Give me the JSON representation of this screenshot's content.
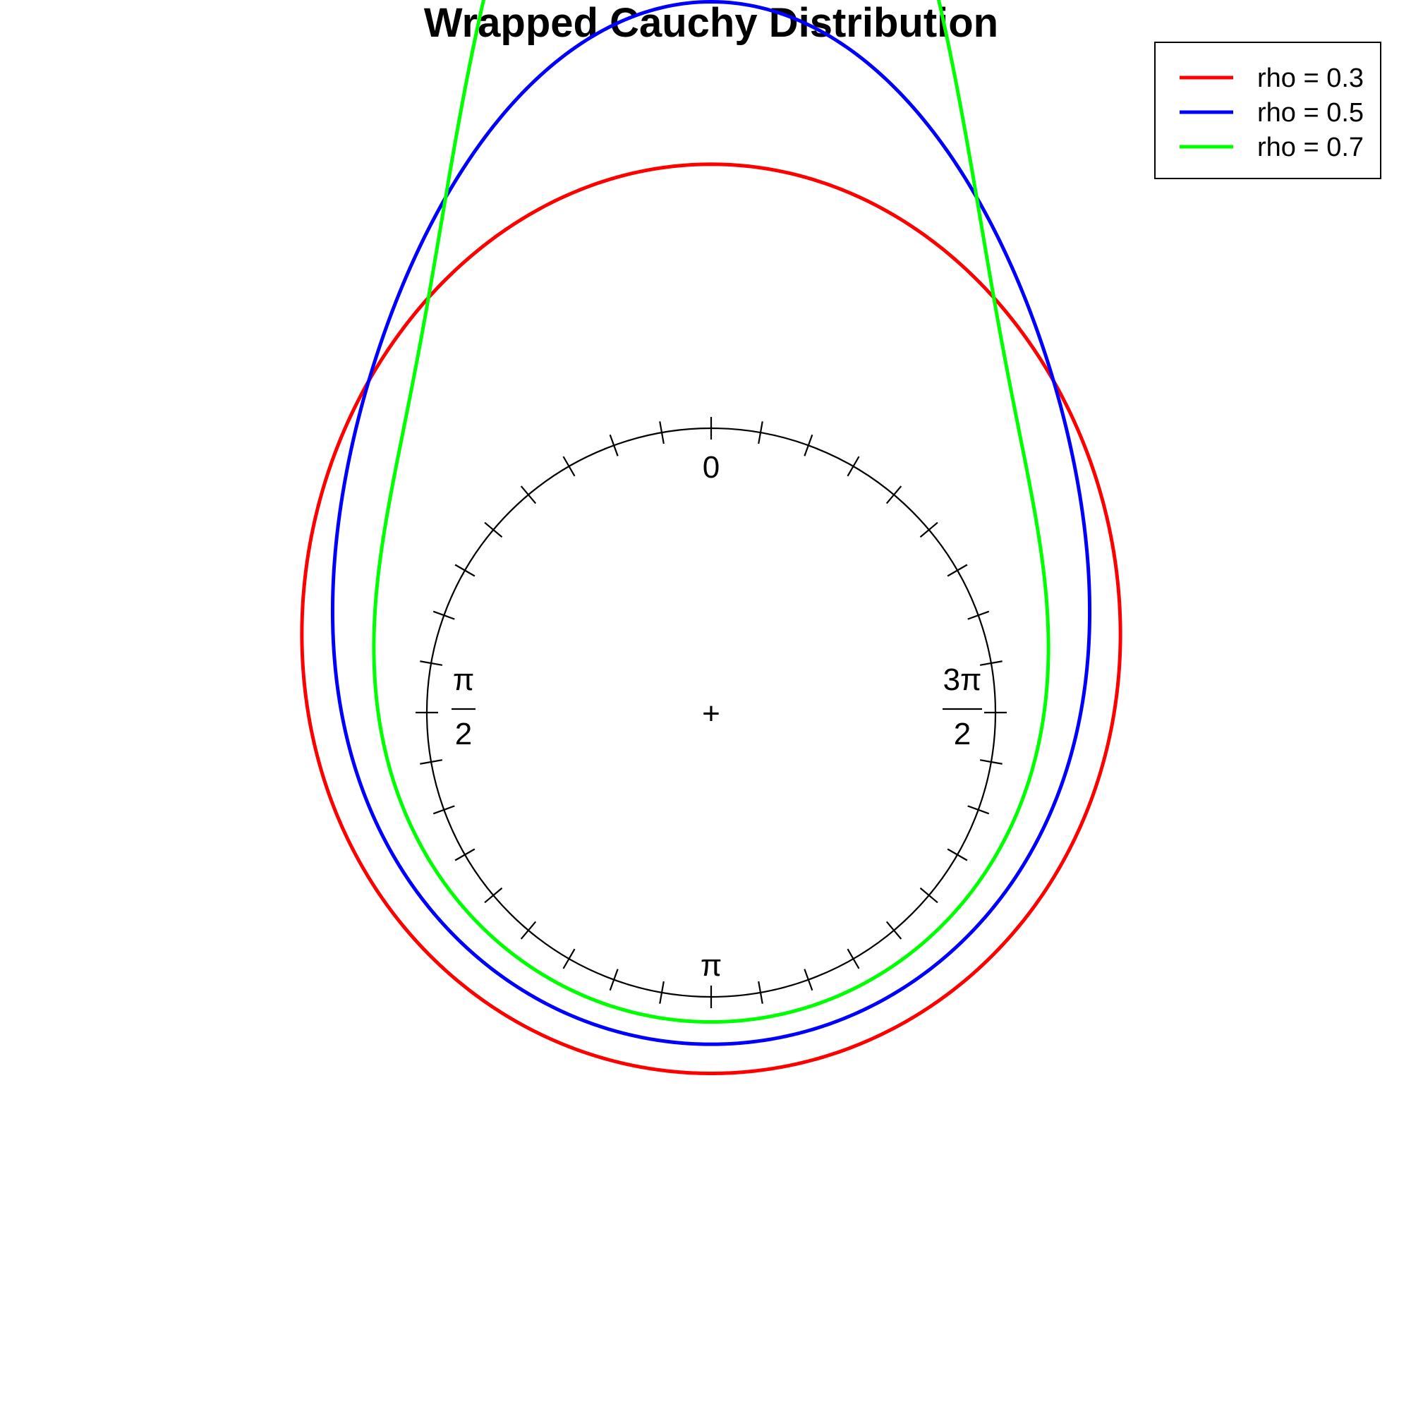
{
  "chart_data": {
    "type": "line",
    "subtype": "circular-density",
    "title": "Wrapped Cauchy Distribution",
    "mu": 0,
    "zero_direction": "top",
    "rotation": "counter-clockwise",
    "shrink": 1,
    "tick_count": 36,
    "angle_labels": {
      "top": "0",
      "left": {
        "numerator": "π",
        "denominator": "2"
      },
      "bottom": "π",
      "right": {
        "numerator": "3π",
        "denominator": "2"
      }
    },
    "center_mark": "+",
    "legend_position": "top-right",
    "series": [
      {
        "name": "rho = 0.3",
        "rho": 0.3,
        "color": "#ff0000"
      },
      {
        "name": "rho = 0.5",
        "rho": 0.5,
        "color": "#0000ff"
      },
      {
        "name": "rho = 0.7",
        "rho": 0.7,
        "color": "#00ff00"
      }
    ]
  }
}
